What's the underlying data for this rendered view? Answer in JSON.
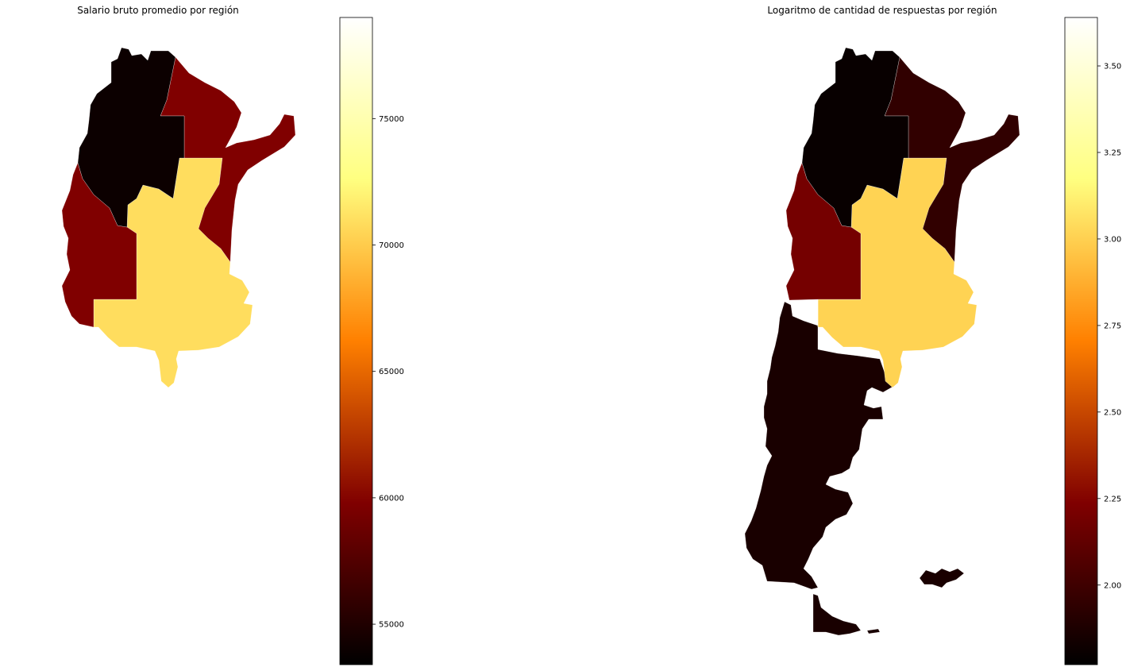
{
  "chart_data": [
    {
      "type": "choropleth",
      "title": "Salario bruto promedio por región",
      "colormap": "afmhot",
      "colorbar": {
        "min": 53400,
        "max": 79000,
        "ticks": [
          55000,
          60000,
          65000,
          70000,
          75000
        ],
        "tick_labels": [
          "55000",
          "60000",
          "65000",
          "70000",
          "75000"
        ]
      },
      "regions": [
        {
          "id": "noa",
          "value": 54000
        },
        {
          "id": "nea",
          "value": 59800
        },
        {
          "id": "cuyo",
          "value": 59800
        },
        {
          "id": "pampeana",
          "value": 70900
        }
      ]
    },
    {
      "type": "choropleth",
      "title": "Logaritmo de cantidad de respuestas por región",
      "colormap": "afmhot",
      "colorbar": {
        "min": 1.77,
        "max": 3.64,
        "ticks": [
          2.0,
          2.25,
          2.5,
          2.75,
          3.0,
          3.25,
          3.5
        ],
        "tick_labels": [
          "2.00",
          "2.25",
          "2.50",
          "2.75",
          "3.00",
          "3.25",
          "3.50"
        ]
      },
      "regions": [
        {
          "id": "noa",
          "value": 1.8
        },
        {
          "id": "nea",
          "value": 1.95
        },
        {
          "id": "cuyo",
          "value": 2.2
        },
        {
          "id": "pampeana",
          "value": 3.01
        },
        {
          "id": "patagonia",
          "value": 1.86
        }
      ]
    }
  ]
}
